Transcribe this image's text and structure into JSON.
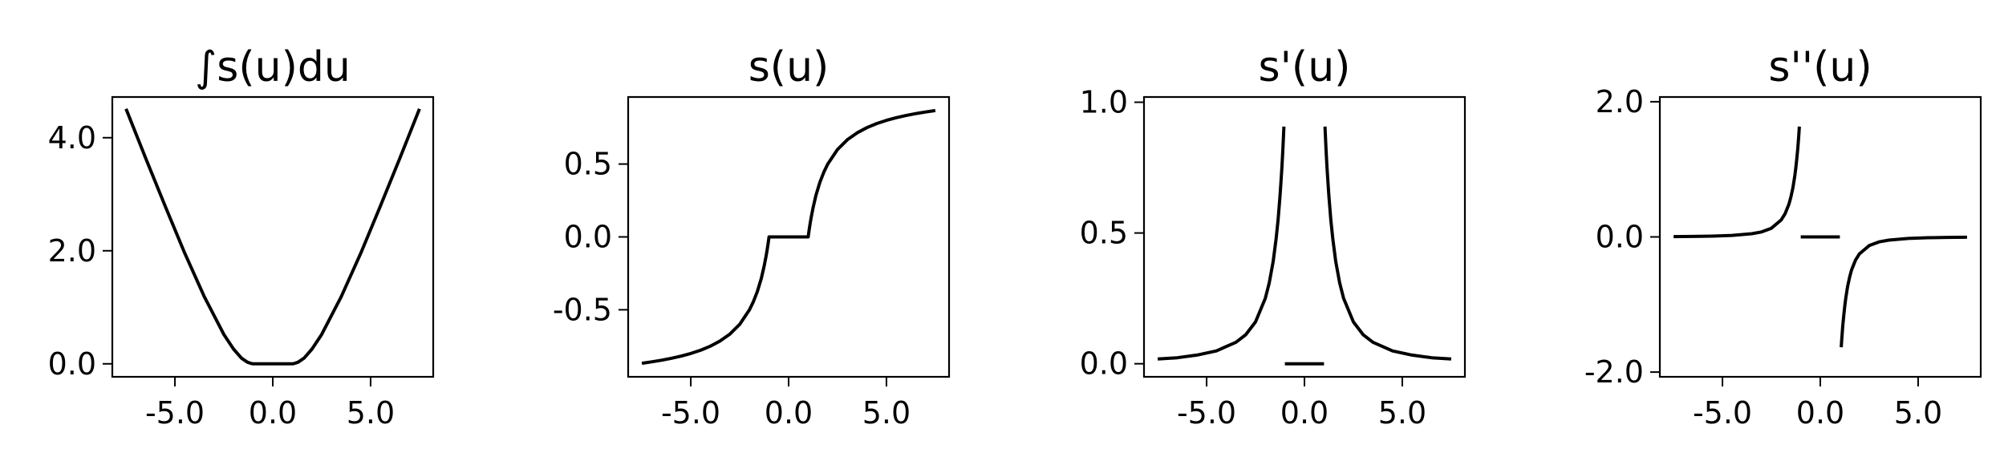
{
  "figure": {
    "description_colors": {
      "background": "#ffffff",
      "line": "#000000"
    }
  },
  "chart_data": [
    {
      "type": "line",
      "title": "∫s(u)du",
      "xlabel": "",
      "ylabel": "",
      "xlim": [
        -8.2,
        8.2
      ],
      "ylim": [
        -0.23,
        4.72
      ],
      "xticks": [
        -5.0,
        0.0,
        5.0
      ],
      "xtick_labels": [
        "-5.0",
        "0.0",
        "5.0"
      ],
      "yticks": [
        0.0,
        2.0,
        4.0
      ],
      "ytick_labels": [
        "0.0",
        "2.0",
        "4.0"
      ],
      "grid": false,
      "series": [
        {
          "x": [
            -7.5,
            -6.5,
            -5.5,
            -4.5,
            -3.5,
            -2.5,
            -2.0,
            -1.6,
            -1.3,
            -1.1,
            -1.0,
            1.0,
            1.1,
            1.3,
            1.6,
            2.0,
            2.5,
            3.5,
            4.5,
            5.5,
            6.5,
            7.5
          ],
          "y": [
            4.51,
            3.64,
            2.79,
            1.96,
            1.19,
            0.52,
            0.26,
            0.1,
            0.03,
            0.005,
            0.0,
            0.0,
            0.005,
            0.03,
            0.1,
            0.26,
            0.52,
            1.19,
            1.96,
            2.79,
            3.64,
            4.51
          ]
        }
      ]
    },
    {
      "type": "line",
      "title": "s(u)",
      "xlabel": "",
      "ylabel": "",
      "xlim": [
        -8.2,
        8.2
      ],
      "ylim": [
        -0.96,
        0.96
      ],
      "xticks": [
        -5.0,
        0.0,
        5.0
      ],
      "xtick_labels": [
        "-5.0",
        "0.0",
        "5.0"
      ],
      "yticks": [
        0.5,
        0.0,
        -0.5
      ],
      "ytick_labels": [
        "0.5",
        "0.0",
        "-0.5"
      ],
      "grid": false,
      "series": [
        {
          "x": [
            -7.5,
            -7.0,
            -6.5,
            -6.0,
            -5.5,
            -5.0,
            -4.5,
            -4.0,
            -3.5,
            -3.0,
            -2.5,
            -2.0,
            -1.8,
            -1.6,
            -1.4,
            -1.25,
            -1.15,
            -1.1,
            -1.05,
            -1.0,
            1.0,
            1.05,
            1.1,
            1.15,
            1.25,
            1.4,
            1.6,
            1.8,
            2.0,
            2.5,
            3.0,
            3.5,
            4.0,
            4.5,
            5.0,
            5.5,
            6.0,
            6.5,
            7.0,
            7.5
          ],
          "y": [
            -0.867,
            -0.857,
            -0.846,
            -0.833,
            -0.818,
            -0.8,
            -0.778,
            -0.75,
            -0.714,
            -0.667,
            -0.6,
            -0.5,
            -0.444,
            -0.375,
            -0.286,
            -0.2,
            -0.13,
            -0.091,
            -0.048,
            0.0,
            0.0,
            0.048,
            0.091,
            0.13,
            0.2,
            0.286,
            0.375,
            0.444,
            0.5,
            0.6,
            0.667,
            0.714,
            0.75,
            0.778,
            0.8,
            0.818,
            0.833,
            0.846,
            0.857,
            0.867
          ]
        }
      ]
    },
    {
      "type": "line",
      "title": "s'(u)",
      "xlabel": "",
      "ylabel": "",
      "xlim": [
        -8.2,
        8.2
      ],
      "ylim": [
        -0.05,
        1.02
      ],
      "xticks": [
        -5.0,
        0.0,
        5.0
      ],
      "xtick_labels": [
        "-5.0",
        "0.0",
        "5.0"
      ],
      "yticks": [
        1.0,
        0.5,
        0.0
      ],
      "ytick_labels": [
        "1.0",
        "0.5",
        "0.0"
      ],
      "grid": false,
      "series": [
        {
          "x": [
            -7.5,
            -6.5,
            -5.5,
            -4.5,
            -3.5,
            -3.0,
            -2.5,
            -2.0,
            -1.8,
            -1.6,
            -1.45,
            -1.35,
            -1.25,
            -1.2,
            -1.15,
            -1.1,
            -1.05
          ],
          "y": [
            0.018,
            0.023,
            0.033,
            0.049,
            0.082,
            0.111,
            0.16,
            0.25,
            0.309,
            0.391,
            0.476,
            0.549,
            0.64,
            0.694,
            0.756,
            0.826,
            0.907
          ]
        },
        {
          "x": [
            -1.0,
            1.0
          ],
          "y": [
            0.0,
            0.0
          ]
        },
        {
          "x": [
            1.05,
            1.1,
            1.15,
            1.2,
            1.25,
            1.35,
            1.45,
            1.6,
            1.8,
            2.0,
            2.5,
            3.0,
            3.5,
            4.5,
            5.5,
            6.5,
            7.5
          ],
          "y": [
            0.907,
            0.826,
            0.756,
            0.694,
            0.64,
            0.549,
            0.476,
            0.391,
            0.309,
            0.25,
            0.16,
            0.111,
            0.082,
            0.049,
            0.033,
            0.023,
            0.018
          ]
        }
      ]
    },
    {
      "type": "line",
      "title": "s''(u)",
      "xlabel": "",
      "ylabel": "",
      "xlim": [
        -8.2,
        8.2
      ],
      "ylim": [
        -2.07,
        2.07
      ],
      "xticks": [
        -5.0,
        0.0,
        5.0
      ],
      "xtick_labels": [
        "-5.0",
        "0.0",
        "5.0"
      ],
      "yticks": [
        2.0,
        0.0,
        -2.0
      ],
      "ytick_labels": [
        "2.0",
        "0.0",
        "-2.0"
      ],
      "grid": false,
      "series": [
        {
          "x": [
            -7.5,
            -6.5,
            -5.5,
            -4.5,
            -3.5,
            -3.0,
            -2.5,
            -2.0,
            -1.8,
            -1.6,
            -1.5,
            -1.4,
            -1.3,
            -1.25,
            -1.2,
            -1.15,
            -1.1,
            -1.07
          ],
          "y": [
            0.005,
            0.007,
            0.012,
            0.022,
            0.047,
            0.074,
            0.128,
            0.25,
            0.343,
            0.488,
            0.593,
            0.729,
            0.91,
            1.024,
            1.157,
            1.315,
            1.503,
            1.632
          ]
        },
        {
          "x": [
            -1.0,
            1.0
          ],
          "y": [
            0.0,
            0.0
          ]
        },
        {
          "x": [
            1.07,
            1.1,
            1.15,
            1.2,
            1.25,
            1.3,
            1.4,
            1.5,
            1.6,
            1.8,
            2.0,
            2.5,
            3.0,
            3.5,
            4.5,
            5.5,
            6.5,
            7.5
          ],
          "y": [
            -1.632,
            -1.503,
            -1.315,
            -1.157,
            -1.024,
            -0.91,
            -0.729,
            -0.593,
            -0.488,
            -0.343,
            -0.25,
            -0.128,
            -0.074,
            -0.047,
            -0.022,
            -0.012,
            -0.007,
            -0.005
          ]
        }
      ]
    }
  ]
}
